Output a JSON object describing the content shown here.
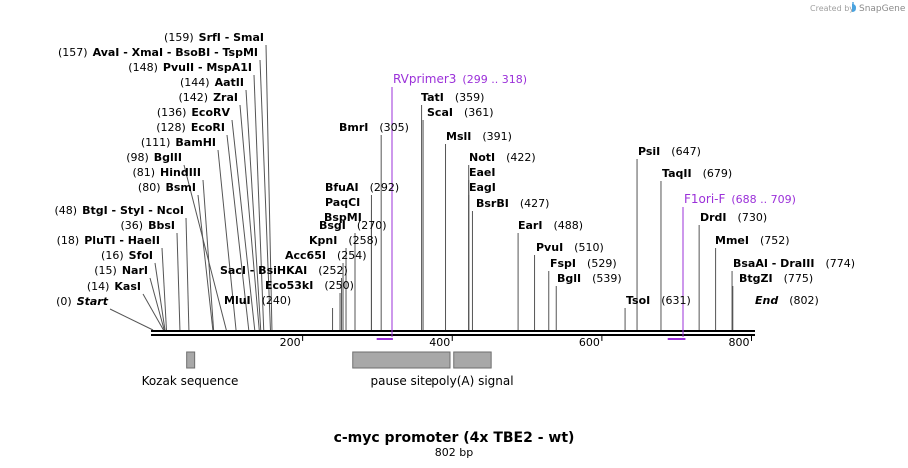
{
  "credit": {
    "prefix": "Created by",
    "brand": "SnapGene"
  },
  "title": "c-myc promoter (4x TBE2 - wt)",
  "subtitle": "802 bp",
  "colors": {
    "primer": "#9b30d9",
    "feature": "#a8a8a8",
    "line": "#000000"
  },
  "icons": {
    "brand": "snapgene-logo-icon"
  },
  "sequence_length": 802,
  "ticks": [
    {
      "pos": 200,
      "label": "200"
    },
    {
      "pos": 400,
      "label": "400"
    },
    {
      "pos": 600,
      "label": "600"
    },
    {
      "pos": 800,
      "label": "800"
    }
  ],
  "sites": [
    {
      "pos": "(0)",
      "name": "Start",
      "anchor": 0,
      "style": "italic"
    },
    {
      "pos": "(14)",
      "name": "KasI",
      "anchor": 14
    },
    {
      "pos": "(15)",
      "name": "NarI",
      "anchor": 15
    },
    {
      "pos": "(16)",
      "name": "SfoI",
      "anchor": 16
    },
    {
      "pos": "(18)",
      "name": "PluTI  -  HaeII",
      "anchor": 18
    },
    {
      "pos": "(36)",
      "name": "BbsI",
      "anchor": 36
    },
    {
      "pos": "(48)",
      "name": "BtgI  -  StyI  -  NcoI",
      "anchor": 48
    },
    {
      "pos": "(80)",
      "name": "BsmI",
      "anchor": 80
    },
    {
      "pos": "(81)",
      "name": "HindIII",
      "anchor": 81
    },
    {
      "pos": "(98)",
      "name": "BglII",
      "anchor": 98
    },
    {
      "pos": "(111)",
      "name": "BamHI",
      "anchor": 111
    },
    {
      "pos": "(128)",
      "name": "EcoRI",
      "anchor": 128
    },
    {
      "pos": "(136)",
      "name": "EcoRV",
      "anchor": 136
    },
    {
      "pos": "(142)",
      "name": "ZraI",
      "anchor": 142
    },
    {
      "pos": "(144)",
      "name": "AatII",
      "anchor": 144
    },
    {
      "pos": "(148)",
      "name": "PvuII  -  MspA1I",
      "anchor": 148
    },
    {
      "pos": "(157)",
      "name": "AvaI  -  XmaI  -  BsoBI  -  TspMI",
      "anchor": 157
    },
    {
      "pos": "(159)",
      "name": "SrfI  -  SmaI",
      "anchor": 159
    },
    {
      "pos": "(240)",
      "name": "MluI",
      "anchor": 240
    },
    {
      "pos": "(250)",
      "name": "Eco53kI",
      "anchor": 250
    },
    {
      "pos": "(252)",
      "name": "SacI  -  BsiHKAI",
      "anchor": 252
    },
    {
      "pos": "(254)",
      "name": "Acc65I",
      "anchor": 254
    },
    {
      "pos": "(258)",
      "name": "KpnI",
      "anchor": 258
    },
    {
      "pos": "(270)",
      "name": "BsgI",
      "anchor": 270
    },
    {
      "pos": "(292)",
      "name": "BfuAI",
      "anchor": 292
    },
    {
      "pos": "",
      "name": "PaqCI",
      "anchor": 292
    },
    {
      "pos": "",
      "name": "BspMI",
      "anchor": 292
    },
    {
      "pos": "(305)",
      "name": "BmrI",
      "anchor": 305
    },
    {
      "pos": "(359)",
      "name": "TatI",
      "anchor": 359
    },
    {
      "pos": "(361)",
      "name": "ScaI",
      "anchor": 361
    },
    {
      "pos": "(391)",
      "name": "MslI",
      "anchor": 391
    },
    {
      "pos": "(422)",
      "name": "NotI",
      "anchor": 422
    },
    {
      "pos": "",
      "name": "EaeI",
      "anchor": 422
    },
    {
      "pos": "",
      "name": "EagI",
      "anchor": 422
    },
    {
      "pos": "(427)",
      "name": "BsrBI",
      "anchor": 427
    },
    {
      "pos": "(488)",
      "name": "EarI",
      "anchor": 488
    },
    {
      "pos": "(510)",
      "name": "PvuI",
      "anchor": 510
    },
    {
      "pos": "(529)",
      "name": "FspI",
      "anchor": 529
    },
    {
      "pos": "(539)",
      "name": "BglI",
      "anchor": 539
    },
    {
      "pos": "(631)",
      "name": "TsoI",
      "anchor": 631
    },
    {
      "pos": "(647)",
      "name": "PsiI",
      "anchor": 647
    },
    {
      "pos": "(679)",
      "name": "TaqII",
      "anchor": 679
    },
    {
      "pos": "(730)",
      "name": "DrdI",
      "anchor": 730
    },
    {
      "pos": "(752)",
      "name": "MmeI",
      "anchor": 752
    },
    {
      "pos": "(774)",
      "name": "BsaAI  -  DraIII",
      "anchor": 774
    },
    {
      "pos": "(775)",
      "name": "BtgZI",
      "anchor": 775
    },
    {
      "pos": "(802)",
      "name": "End",
      "anchor": 802,
      "style": "italic"
    }
  ],
  "primers": [
    {
      "name": "RVprimer3",
      "range": "(299 .. 318)",
      "start": 299,
      "end": 318
    },
    {
      "name": "F1ori-F",
      "range": "(688 .. 709)",
      "start": 688,
      "end": 709
    }
  ],
  "features": [
    {
      "name": "Kozak sequence",
      "start": 45,
      "end": 55
    },
    {
      "name": "pause site",
      "start": 267,
      "end": 397
    },
    {
      "name": "poly(A) signal",
      "start": 402,
      "end": 452
    }
  ]
}
